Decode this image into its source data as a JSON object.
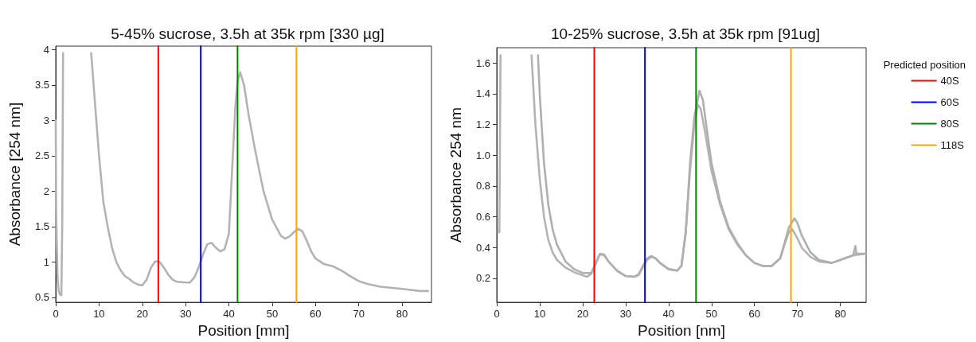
{
  "chart_data": [
    {
      "type": "line",
      "title": "5-45% sucrose, 3.5h at 35k rpm [330 µg]",
      "xlabel": "Position [mm]",
      "ylabel": "Absorbance [254 nm]",
      "xlim": [
        0,
        86.8
      ],
      "ylim": [
        0.43,
        4.05
      ],
      "xticks": [
        0,
        10,
        20,
        30,
        40,
        50,
        60,
        70,
        80
      ],
      "yticks": [
        0.5,
        1,
        1.5,
        2,
        2.5,
        3,
        3.5,
        4
      ],
      "grid": false,
      "legend": false,
      "marker": "none",
      "line_style": "solid",
      "series": [
        {
          "color": "#b3b3b3",
          "x": [
            0,
            0.1,
            0.4,
            0.7,
            1.0,
            1.3,
            1.5,
            1.7,
            5,
            8.2,
            9,
            10,
            11,
            12,
            13,
            14,
            15,
            16,
            17,
            18,
            19,
            20,
            21,
            22,
            23,
            24,
            25,
            26,
            27,
            28,
            30,
            31,
            32,
            33,
            34,
            35,
            36,
            37,
            38,
            39,
            40,
            41,
            41.5,
            42,
            42.6,
            43.5,
            44.5,
            46,
            48,
            50,
            52,
            53,
            54,
            55,
            56,
            57,
            58,
            59,
            60,
            62,
            64,
            66,
            68,
            70,
            72,
            75,
            80,
            84,
            86
          ],
          "values": [
            3.0,
            1.7,
            0.8,
            0.58,
            0.54,
            0.53,
            1.5,
            3.95,
            null,
            3.95,
            3.3,
            2.5,
            1.85,
            1.5,
            1.2,
            1.0,
            0.88,
            0.8,
            0.76,
            0.71,
            0.68,
            0.67,
            0.75,
            0.92,
            1.01,
            1.0,
            0.92,
            0.82,
            0.75,
            0.72,
            0.71,
            0.71,
            0.78,
            0.92,
            1.1,
            1.25,
            1.27,
            1.2,
            1.15,
            1.18,
            1.4,
            2.6,
            3.2,
            3.55,
            3.68,
            3.5,
            3.1,
            2.6,
            2.0,
            1.6,
            1.37,
            1.33,
            1.36,
            1.42,
            1.47,
            1.43,
            1.3,
            1.15,
            1.05,
            0.97,
            0.94,
            0.88,
            0.8,
            0.73,
            0.69,
            0.65,
            0.62,
            0.59,
            0.59
          ]
        },
        {
          "color": "#ff0000",
          "x": [
            23.7,
            23.7
          ],
          "values": [
            0.43,
            4.05
          ]
        },
        {
          "color": "#0000ff",
          "x": [
            33.5,
            33.5
          ],
          "values": [
            0.43,
            4.05
          ]
        },
        {
          "color": "#008000",
          "x": [
            42,
            42
          ],
          "values": [
            0.43,
            4.05
          ]
        },
        {
          "color": "#ffa500",
          "x": [
            55.6,
            55.6
          ],
          "values": [
            0.43,
            4.05
          ]
        }
      ]
    },
    {
      "type": "line",
      "title": "10-25% sucrose, 3.5h at 35k rpm [91ug]",
      "xlabel": "Position [nm]",
      "ylabel": "Absorbance 254 nm",
      "legend_title": "Predicted position",
      "xlim": [
        0,
        86
      ],
      "ylim": [
        0.044,
        1.7
      ],
      "xticks": [
        0,
        10,
        20,
        30,
        40,
        50,
        60,
        70,
        80
      ],
      "yticks": [
        0.2,
        0.4,
        0.6,
        0.8,
        {
          "value": 1,
          "label": "1.0"
        },
        1.2,
        1.4,
        1.6
      ],
      "grid": false,
      "legend": "right",
      "marker": "none",
      "line_style": "solid",
      "series": [
        {
          "color": "#b3b3b3",
          "x": [
            0.3,
            0.6,
            0.88,
            4,
            8.1,
            9,
            10,
            11,
            12,
            13,
            14,
            16,
            18,
            20,
            21,
            22,
            23,
            24,
            25,
            26,
            28,
            30,
            32,
            33,
            34,
            35,
            36,
            37,
            38,
            40,
            42,
            43,
            44,
            45,
            46,
            46.8,
            47.5,
            48.5,
            50,
            52,
            54,
            56,
            58,
            60,
            62,
            64,
            66,
            67,
            68,
            68.8,
            70,
            71,
            73,
            75,
            78,
            80,
            83,
            86
          ],
          "values": [
            0.5,
            0.5,
            1.65,
            null,
            1.65,
            1.2,
            0.85,
            0.6,
            0.45,
            0.37,
            0.32,
            0.27,
            0.24,
            0.22,
            0.21,
            0.23,
            0.3,
            0.355,
            0.35,
            0.31,
            0.25,
            0.215,
            0.21,
            0.22,
            0.27,
            0.32,
            0.34,
            0.33,
            0.3,
            0.26,
            0.25,
            0.28,
            0.5,
            0.9,
            1.2,
            1.33,
            1.3,
            1.15,
            0.9,
            0.68,
            0.52,
            0.42,
            0.35,
            0.3,
            0.28,
            0.28,
            0.33,
            0.42,
            0.5,
            0.52,
            0.46,
            0.4,
            0.34,
            0.31,
            0.3,
            0.32,
            0.35,
            0.36
          ]
        },
        {
          "color": "#afafaf",
          "x": [
            9.6,
            10,
            11,
            12,
            13,
            14,
            16,
            18,
            20,
            22,
            23,
            24,
            25,
            26,
            28,
            30,
            32,
            33,
            34,
            35,
            36,
            37,
            38,
            40,
            42,
            43,
            44,
            45,
            46,
            47.2,
            48,
            49,
            50,
            52,
            54,
            56,
            58,
            60,
            62,
            64,
            66,
            67,
            68,
            69.3,
            70,
            71,
            73,
            75,
            78,
            80,
            83,
            83.5,
            83.7,
            86
          ],
          "values": [
            1.65,
            1.4,
            0.95,
            0.68,
            0.52,
            0.42,
            0.31,
            0.26,
            0.235,
            0.235,
            0.29,
            0.36,
            0.355,
            0.31,
            0.25,
            0.215,
            0.21,
            0.225,
            0.28,
            0.33,
            0.345,
            0.33,
            0.3,
            0.26,
            0.25,
            0.28,
            0.5,
            0.95,
            1.25,
            1.42,
            1.36,
            1.15,
            0.95,
            0.7,
            0.53,
            0.43,
            0.35,
            0.3,
            0.28,
            0.28,
            0.33,
            0.43,
            0.53,
            0.59,
            0.56,
            0.48,
            0.37,
            0.32,
            0.3,
            0.32,
            0.35,
            0.41,
            0.36,
            0.36
          ]
        },
        {
          "name": "40S",
          "color": "#ff0000",
          "x": [
            22.7,
            22.7
          ],
          "values": [
            0.044,
            1.7
          ]
        },
        {
          "name": "60S",
          "color": "#0000ff",
          "x": [
            34.5,
            34.5
          ],
          "values": [
            0.044,
            1.7
          ]
        },
        {
          "name": "80S",
          "color": "#008000",
          "x": [
            46.4,
            46.4
          ],
          "values": [
            0.044,
            1.7
          ]
        },
        {
          "name": "118S",
          "color": "#ffa500",
          "x": [
            68.5,
            68.5
          ],
          "values": [
            0.044,
            1.7
          ]
        }
      ]
    }
  ]
}
